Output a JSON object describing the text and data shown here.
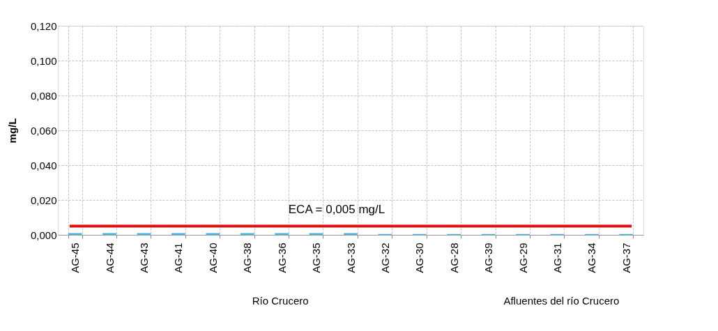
{
  "chart_data": {
    "type": "bar",
    "ylabel": "mg/L",
    "categories": [
      "AG-45",
      "AG-44",
      "AG-43",
      "AG-41",
      "AG-40",
      "AG-38",
      "AG-36",
      "AG-35",
      "AG-33",
      "AG-32",
      "AG-30",
      "AG-28",
      "AG-39",
      "AG-29",
      "AG-31",
      "AG-34",
      "AG-37"
    ],
    "series": [
      {
        "color": "#4fb3e0",
        "values": [
          0.001,
          0.001,
          0.001,
          0.001,
          0.001,
          0.001,
          0.001,
          0.001,
          0.001,
          0.0005,
          0.0005,
          0.0005,
          0.0005,
          0.0005,
          0.0005,
          0.0005,
          0.0005
        ]
      }
    ],
    "ylim": [
      0,
      0.12
    ],
    "yticks": [
      {
        "value": 0,
        "label": "0,000"
      },
      {
        "value": 0.02,
        "label": "0,020"
      },
      {
        "value": 0.04,
        "label": "0,040"
      },
      {
        "value": 0.06,
        "label": "0,060"
      },
      {
        "value": 0.08,
        "label": "0,080"
      },
      {
        "value": 0.1,
        "label": "0,100"
      },
      {
        "value": 0.12,
        "label": "0,120"
      }
    ],
    "ref_lines": [
      {
        "axis": "y",
        "value": 0.005,
        "label": "ECA = 0,005 mg/L",
        "color": "#e01010"
      }
    ],
    "annotations": [
      "Río Crucero",
      "Afluentes del río Crucero"
    ],
    "grid": true,
    "legend": false
  }
}
